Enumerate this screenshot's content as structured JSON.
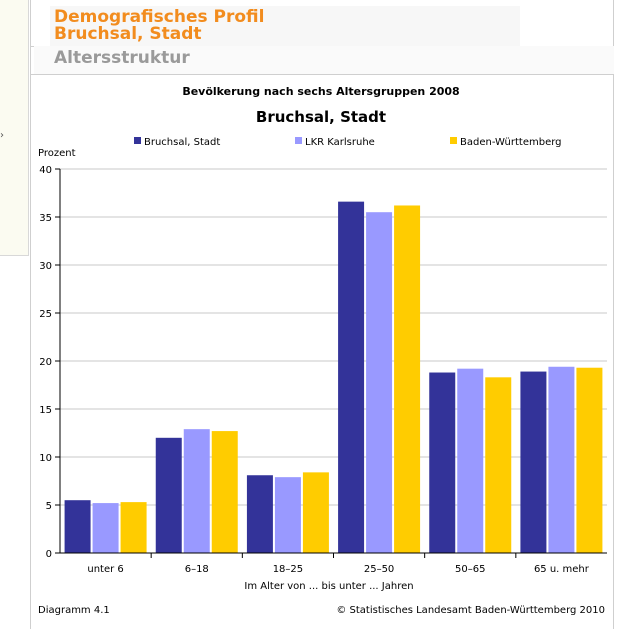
{
  "header": {
    "title_line1": "Demografisches Profil",
    "title_line2": "Bruchsal, Stadt",
    "section": "Altersstruktur"
  },
  "chart_data": {
    "type": "bar",
    "title": "Bevölkerung nach sechs Altersgruppen 2008",
    "subtitle": "Bruchsal, Stadt",
    "ylabel": "Prozent",
    "xlabel": "Im Alter von ... bis unter ... Jahren",
    "ylim": [
      0,
      40
    ],
    "yticks": [
      0,
      5,
      10,
      15,
      20,
      25,
      30,
      35,
      40
    ],
    "grid": true,
    "legend_position": "top",
    "categories": [
      "unter 6",
      "6–18",
      "18–25",
      "25–50",
      "50–65",
      "65 u. mehr"
    ],
    "series": [
      {
        "name": "Bruchsal, Stadt",
        "color": "#333399",
        "values": [
          5.5,
          12.0,
          8.1,
          36.6,
          18.8,
          18.9
        ]
      },
      {
        "name": "LKR Karlsruhe",
        "color": "#9999ff",
        "values": [
          5.2,
          12.9,
          7.9,
          35.5,
          19.2,
          19.4
        ]
      },
      {
        "name": "Baden-Württemberg",
        "color": "#ffcc00",
        "values": [
          5.3,
          12.7,
          8.4,
          36.2,
          18.3,
          19.3
        ]
      }
    ],
    "footer_left": "Diagramm 4.1",
    "footer_right": "© Statistisches Landesamt Baden-Württemberg 2010"
  }
}
